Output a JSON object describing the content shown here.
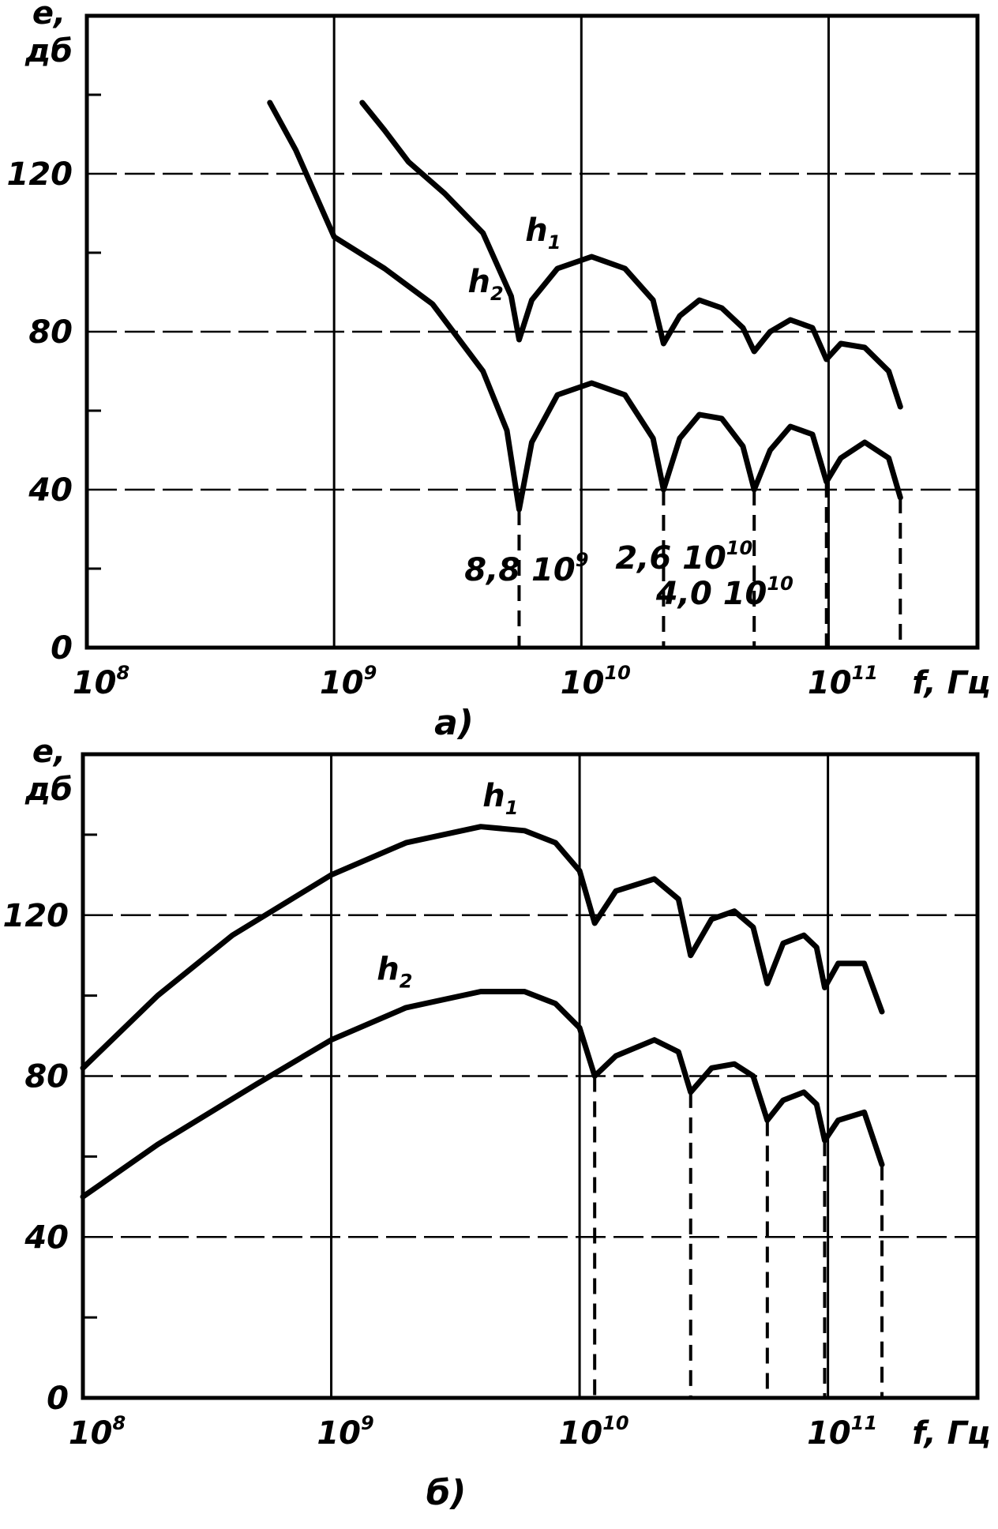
{
  "chart_data": [
    {
      "type": "line",
      "caption": "a)",
      "ylabel_line1": "e,",
      "ylabel_line2": "дб",
      "xlabel": "f, Гц",
      "x_scale": "log",
      "xlim": [
        100000000,
        400000000000
      ],
      "ylim": [
        0,
        160
      ],
      "yticks": [
        "0",
        "40",
        "80",
        "120"
      ],
      "xticks": [
        {
          "value": 100000000,
          "base": "10",
          "exp": "8"
        },
        {
          "value": 1000000000,
          "base": "10",
          "exp": "9"
        },
        {
          "value": 10000000000,
          "base": "10",
          "exp": "10"
        },
        {
          "value": 100000000000,
          "base": "10",
          "exp": "11"
        }
      ],
      "grid": true,
      "annotations": [
        {
          "x": 6000000000,
          "y": 17,
          "mantissa": "8,8",
          "base": "10",
          "exp": "9"
        },
        {
          "x": 26000000000,
          "y": 20,
          "mantissa": "2,6",
          "base": "10",
          "exp": "10"
        },
        {
          "x": 38000000000,
          "y": 11,
          "mantissa": "4,0",
          "base": "10",
          "exp": "10"
        }
      ],
      "series": [
        {
          "name": "h1",
          "label_main": "h",
          "label_sub": "1",
          "label_at": {
            "x": 7000000000,
            "y": 103
          },
          "values": [
            [
              1300000000,
              138
            ],
            [
              1600000000,
              131
            ],
            [
              2000000000,
              123
            ],
            [
              2800000000,
              115
            ],
            [
              4000000000,
              105
            ],
            [
              5200000000,
              89
            ],
            [
              5600000000,
              78
            ],
            [
              6300000000,
              88
            ],
            [
              8000000000,
              96
            ],
            [
              11000000000,
              99
            ],
            [
              15000000000,
              96
            ],
            [
              19500000000,
              88
            ],
            [
              21500000000,
              77
            ],
            [
              25000000000,
              84
            ],
            [
              30000000000,
              88
            ],
            [
              37000000000,
              86
            ],
            [
              45000000000,
              81
            ],
            [
              50000000000,
              75
            ],
            [
              58000000000,
              80
            ],
            [
              70000000000,
              83
            ],
            [
              86000000000,
              81
            ],
            [
              98000000000,
              73
            ],
            [
              112000000000,
              77
            ],
            [
              140000000000,
              76
            ],
            [
              175000000000,
              70
            ],
            [
              195000000000,
              61
            ]
          ]
        },
        {
          "name": "h2",
          "label_main": "h",
          "label_sub": "2",
          "label_at": {
            "x": 4100000000,
            "y": 90
          },
          "values": [
            [
              550000000,
              138
            ],
            [
              700000000,
              126
            ],
            [
              1000000000,
              104
            ],
            [
              1600000000,
              96
            ],
            [
              2500000000,
              87
            ],
            [
              4000000000,
              70
            ],
            [
              5000000000,
              55
            ],
            [
              5600000000,
              35
            ],
            [
              6300000000,
              52
            ],
            [
              8000000000,
              64
            ],
            [
              11000000000,
              67
            ],
            [
              15000000000,
              64
            ],
            [
              19500000000,
              53
            ],
            [
              21500000000,
              40
            ],
            [
              25000000000,
              53
            ],
            [
              30000000000,
              59
            ],
            [
              37000000000,
              58
            ],
            [
              45000000000,
              51
            ],
            [
              50000000000,
              40
            ],
            [
              58000000000,
              50
            ],
            [
              70000000000,
              56
            ],
            [
              86000000000,
              54
            ],
            [
              98000000000,
              42
            ],
            [
              112000000000,
              48
            ],
            [
              140000000000,
              52
            ],
            [
              175000000000,
              48
            ],
            [
              195000000000,
              38
            ]
          ]
        }
      ],
      "drop_lines_x": [
        5600000000,
        21500000000,
        50000000000,
        98000000000,
        195000000000
      ]
    },
    {
      "type": "line",
      "caption": "б)",
      "ylabel_line1": "e,",
      "ylabel_line2": "дб",
      "xlabel": "f, Гц",
      "x_scale": "log",
      "xlim": [
        100000000,
        400000000000
      ],
      "ylim": [
        0,
        160
      ],
      "yticks": [
        "0",
        "40",
        "80",
        "120"
      ],
      "xticks": [
        {
          "value": 100000000,
          "base": "10",
          "exp": "8"
        },
        {
          "value": 1000000000,
          "base": "10",
          "exp": "9"
        },
        {
          "value": 10000000000,
          "base": "10",
          "exp": "10"
        },
        {
          "value": 100000000000,
          "base": "10",
          "exp": "11"
        }
      ],
      "grid": true,
      "annotations": [],
      "series": [
        {
          "name": "h1",
          "label_main": "h",
          "label_sub": "1",
          "label_at": {
            "x": 4800000000,
            "y": 147
          },
          "values": [
            [
              100000000,
              82
            ],
            [
              200000000,
              100
            ],
            [
              400000000,
              115
            ],
            [
              1000000000,
              130
            ],
            [
              2000000000,
              138
            ],
            [
              4000000000,
              142
            ],
            [
              6000000000,
              141
            ],
            [
              8000000000,
              138
            ],
            [
              10000000000,
              131
            ],
            [
              11500000000,
              118
            ],
            [
              14000000000,
              126
            ],
            [
              20000000000,
              129
            ],
            [
              25000000000,
              124
            ],
            [
              28000000000,
              110
            ],
            [
              34000000000,
              119
            ],
            [
              42000000000,
              121
            ],
            [
              50000000000,
              117
            ],
            [
              57000000000,
              103
            ],
            [
              66000000000,
              113
            ],
            [
              80000000000,
              115
            ],
            [
              90000000000,
              112
            ],
            [
              97000000000,
              102
            ],
            [
              110000000000,
              108
            ],
            [
              140000000000,
              108
            ],
            [
              165000000000,
              96
            ]
          ]
        },
        {
          "name": "h2",
          "label_main": "h",
          "label_sub": "2",
          "label_at": {
            "x": 1800000000,
            "y": 104
          },
          "values": [
            [
              100000000,
              50
            ],
            [
              200000000,
              63
            ],
            [
              500000000,
              78
            ],
            [
              1000000000,
              89
            ],
            [
              2000000000,
              97
            ],
            [
              4000000000,
              101
            ],
            [
              6000000000,
              101
            ],
            [
              8000000000,
              98
            ],
            [
              10000000000,
              92
            ],
            [
              11500000000,
              80
            ],
            [
              14000000000,
              85
            ],
            [
              20000000000,
              89
            ],
            [
              25000000000,
              86
            ],
            [
              28000000000,
              76
            ],
            [
              34000000000,
              82
            ],
            [
              42000000000,
              83
            ],
            [
              50000000000,
              80
            ],
            [
              57000000000,
              69
            ],
            [
              66000000000,
              74
            ],
            [
              80000000000,
              76
            ],
            [
              90000000000,
              73
            ],
            [
              97000000000,
              64
            ],
            [
              110000000000,
              69
            ],
            [
              140000000000,
              71
            ],
            [
              165000000000,
              58
            ]
          ]
        }
      ],
      "drop_lines_x": [
        11500000000,
        28000000000,
        57000000000,
        97000000000,
        165000000000
      ]
    }
  ]
}
